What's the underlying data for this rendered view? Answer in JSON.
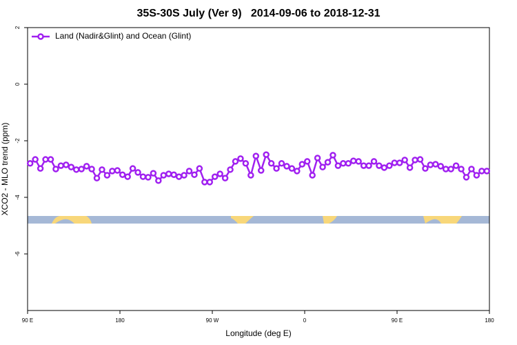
{
  "chart_data": {
    "type": "line",
    "title": "35S-30S July (Ver 9)   2014-09-06 to 2018-12-31",
    "x_label": "Longitude (deg E)",
    "y_label": "XCO2 - MLO trend (ppm)",
    "xlim": [
      90,
      540
    ],
    "xticks": [
      {
        "value": 90,
        "label": "90 E"
      },
      180,
      {
        "value": 270,
        "label": "90 W"
      },
      {
        "value": 360,
        "label": "0"
      },
      {
        "value": 450,
        "label": "90 E"
      },
      {
        "value": 540,
        "label": "180"
      }
    ],
    "ylim": [
      -8,
      2
    ],
    "yticks": [
      2,
      0,
      -2,
      -4,
      -6
    ],
    "legend": "top-left",
    "x": [
      92.5,
      97.5,
      102.5,
      107.5,
      112.5,
      117.5,
      122.5,
      127.5,
      132.5,
      137.5,
      142.5,
      147.5,
      152.5,
      157.5,
      162.5,
      167.5,
      172.5,
      177.5,
      182.5,
      187.5,
      192.5,
      197.5,
      202.5,
      207.5,
      212.5,
      217.5,
      222.5,
      227.5,
      232.5,
      237.5,
      242.5,
      247.5,
      252.5,
      257.5,
      262.5,
      267.5,
      272.5,
      277.5,
      282.5,
      287.5,
      292.5,
      297.5,
      302.5,
      307.5,
      312.5,
      317.5,
      322.5,
      327.5,
      332.5,
      337.5,
      342.5,
      347.5,
      352.5,
      357.5,
      362.5,
      367.5,
      372.5,
      377.5,
      382.5,
      387.5,
      392.5,
      397.5,
      402.5,
      407.5,
      412.5,
      417.5,
      422.5,
      427.5,
      432.5,
      437.5,
      442.5,
      447.5,
      452.5,
      457.5,
      462.5,
      467.5,
      472.5,
      477.5,
      482.5,
      487.5,
      492.5,
      497.5,
      502.5,
      507.5,
      512.5,
      517.5,
      522.5,
      527.5,
      532.5,
      537.5
    ],
    "series": [
      {
        "name": "Land (Nadir&Glint) and Ocean (Glint)",
        "color": "#a020f0",
        "values": [
          -2.8,
          -2.66,
          -2.98,
          -2.66,
          -2.66,
          -3.0,
          -2.88,
          -2.85,
          -2.93,
          -3.02,
          -3.0,
          -2.9,
          -3.0,
          -3.32,
          -3.02,
          -3.22,
          -3.07,
          -3.05,
          -3.2,
          -3.27,
          -2.98,
          -3.12,
          -3.27,
          -3.29,
          -3.15,
          -3.41,
          -3.22,
          -3.17,
          -3.2,
          -3.27,
          -3.22,
          -3.07,
          -3.2,
          -2.98,
          -3.46,
          -3.46,
          -3.27,
          -3.17,
          -3.32,
          -3.02,
          -2.73,
          -2.63,
          -2.8,
          -3.22,
          -2.54,
          -3.05,
          -2.49,
          -2.8,
          -2.98,
          -2.8,
          -2.9,
          -2.98,
          -3.07,
          -2.83,
          -2.73,
          -3.22,
          -2.61,
          -2.93,
          -2.76,
          -2.51,
          -2.88,
          -2.8,
          -2.8,
          -2.71,
          -2.73,
          -2.88,
          -2.88,
          -2.73,
          -2.88,
          -2.95,
          -2.88,
          -2.78,
          -2.78,
          -2.68,
          -2.95,
          -2.68,
          -2.66,
          -2.98,
          -2.85,
          -2.83,
          -2.9,
          -3.0,
          -3.0,
          -2.88,
          -3.0,
          -3.29,
          -3.0,
          -3.22,
          -3.07,
          -3.07
        ]
      }
    ]
  }
}
